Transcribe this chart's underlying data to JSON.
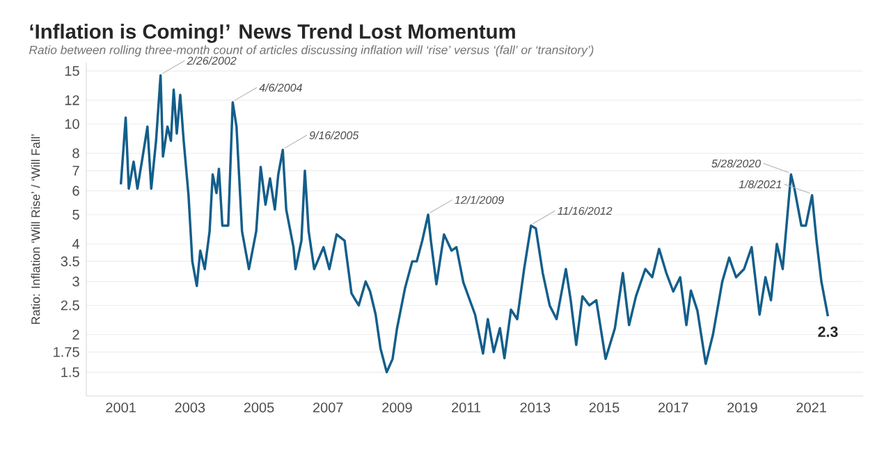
{
  "chart_data": {
    "type": "line",
    "title": "‘Inflation is Coming!’ News Trend Lost Momentum",
    "subtitle": "Ratio between rolling three-month count of articles discussing inflation will ‘rise’ versus ‘(fall’ or ‘transitory’)",
    "ylabel": "Ratio: Inflation ‘Will Rise’ / ‘Will Fall’",
    "series": [
      {
        "color": "#135e8a",
        "x": [
          2001.0,
          2001.14,
          2001.23,
          2001.37,
          2001.48,
          2001.64,
          2001.77,
          2001.88,
          2002.02,
          2002.15,
          2002.22,
          2002.35,
          2002.45,
          2002.53,
          2002.62,
          2002.72,
          2002.82,
          2002.96,
          2003.07,
          2003.2,
          2003.3,
          2003.43,
          2003.57,
          2003.66,
          2003.77,
          2003.84,
          2003.94,
          2004.11,
          2004.24,
          2004.35,
          2004.51,
          2004.71,
          2004.92,
          2005.05,
          2005.19,
          2005.32,
          2005.46,
          2005.56,
          2005.69,
          2005.79,
          2006.0,
          2006.06,
          2006.23,
          2006.33,
          2006.44,
          2006.6,
          2006.87,
          2007.04,
          2007.25,
          2007.48,
          2007.68,
          2007.89,
          2008.09,
          2008.22,
          2008.38,
          2008.52,
          2008.7,
          2008.87,
          2009.0,
          2009.23,
          2009.44,
          2009.57,
          2009.73,
          2009.9,
          2009.98,
          2010.14,
          2010.36,
          2010.58,
          2010.72,
          2010.92,
          2011.26,
          2011.49,
          2011.63,
          2011.8,
          2011.98,
          2012.11,
          2012.3,
          2012.48,
          2012.68,
          2012.88,
          2013.02,
          2013.22,
          2013.42,
          2013.62,
          2013.89,
          2014.03,
          2014.19,
          2014.37,
          2014.57,
          2014.77,
          2015.04,
          2015.31,
          2015.54,
          2015.72,
          2015.92,
          2016.19,
          2016.39,
          2016.59,
          2016.8,
          2017.0,
          2017.2,
          2017.38,
          2017.51,
          2017.7,
          2017.94,
          2018.15,
          2018.42,
          2018.62,
          2018.82,
          2019.05,
          2019.27,
          2019.5,
          2019.67,
          2019.83,
          2020.0,
          2020.17,
          2020.41,
          2020.51,
          2020.71,
          2020.84,
          2021.02,
          2021.15,
          2021.29,
          2021.48
        ],
        "values": [
          6.3,
          10.5,
          6.1,
          7.5,
          6.1,
          7.9,
          9.8,
          6.1,
          8.8,
          14.5,
          7.8,
          9.8,
          8.8,
          13.0,
          9.3,
          12.5,
          8.8,
          5.8,
          3.5,
          2.9,
          3.8,
          3.3,
          4.4,
          6.8,
          5.9,
          7.1,
          4.6,
          4.6,
          11.8,
          9.8,
          4.4,
          3.3,
          4.4,
          7.2,
          5.4,
          6.6,
          5.2,
          6.8,
          8.2,
          5.2,
          3.9,
          3.3,
          4.1,
          7.0,
          4.4,
          3.3,
          3.9,
          3.3,
          4.3,
          4.1,
          2.74,
          2.5,
          3.0,
          2.78,
          2.33,
          1.8,
          1.5,
          1.66,
          2.1,
          2.85,
          3.5,
          3.5,
          4.1,
          5.0,
          4.1,
          2.94,
          4.3,
          3.8,
          3.9,
          2.98,
          2.33,
          1.73,
          2.25,
          1.75,
          2.1,
          1.67,
          2.42,
          2.25,
          3.3,
          4.6,
          4.5,
          3.2,
          2.5,
          2.25,
          3.3,
          2.6,
          1.85,
          2.68,
          2.5,
          2.6,
          1.66,
          2.1,
          3.2,
          2.15,
          2.68,
          3.3,
          3.1,
          3.85,
          3.2,
          2.78,
          3.1,
          2.15,
          2.8,
          2.4,
          1.6,
          2.0,
          3.0,
          3.6,
          3.1,
          3.3,
          3.9,
          2.33,
          3.1,
          2.6,
          4.0,
          3.3,
          6.8,
          6.1,
          4.6,
          4.6,
          5.8,
          4.1,
          3.0,
          2.3
        ]
      }
    ],
    "annotations": [
      {
        "text": "2/26/2002",
        "x": 2002.15,
        "y": 14.5
      },
      {
        "text": "4/6/2004",
        "x": 2004.24,
        "y": 11.8
      },
      {
        "text": "9/16/2005",
        "x": 2005.69,
        "y": 8.2
      },
      {
        "text": "12/1/2009",
        "x": 2009.9,
        "y": 5.0
      },
      {
        "text": "11/16/2012",
        "x": 2012.88,
        "y": 4.6
      },
      {
        "text": "5/28/2020",
        "x": 2020.41,
        "y": 6.8
      },
      {
        "text": "1/8/2021",
        "x": 2021.02,
        "y": 5.8
      },
      {
        "text": "2.3",
        "x": 2021.48,
        "y": 2.3
      }
    ],
    "log": "y",
    "xlim": [
      2000,
      2022.5
    ],
    "xticks": [
      2001,
      2003,
      2005,
      2007,
      2009,
      2011,
      2013,
      2015,
      2017,
      2019,
      2021
    ],
    "ylim": [
      1.25,
      16
    ],
    "yticks": [
      1.5,
      1.75,
      2,
      2.5,
      3,
      3.5,
      4,
      5,
      6,
      7,
      8,
      10,
      12,
      15
    ],
    "grid": "y",
    "marker": "none",
    "line_style": "solid"
  }
}
